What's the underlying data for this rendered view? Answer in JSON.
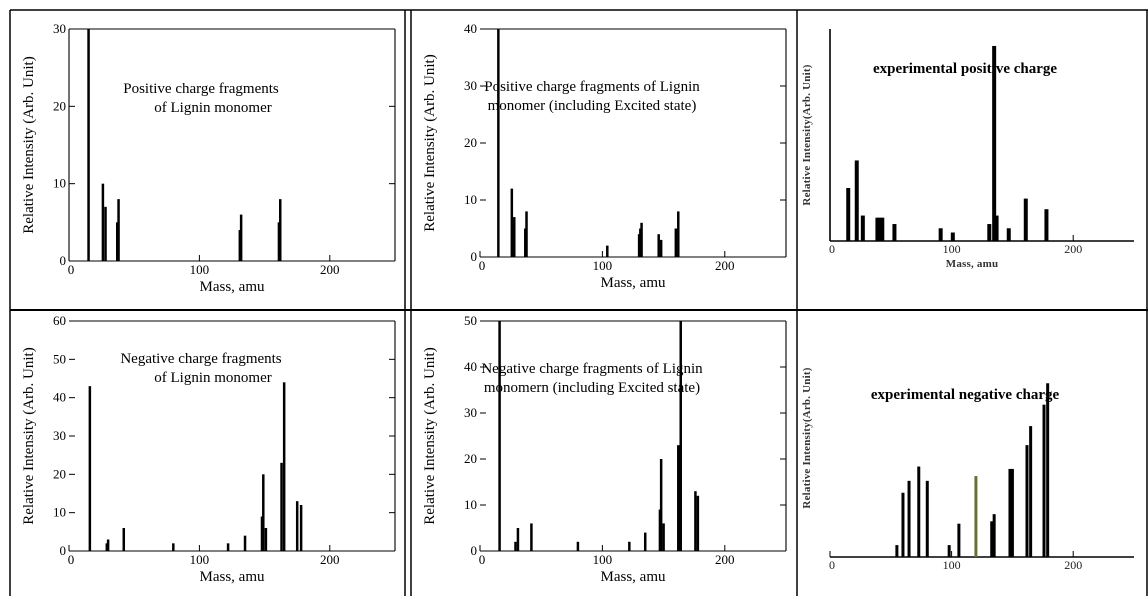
{
  "chart_data": [
    {
      "type": "bar",
      "annotation": [
        "Positive charge fragments",
        "of Lignin monomer"
      ],
      "xlabel": "Mass, amu",
      "ylabel": "Relative Intensity (Arb. Unit)",
      "xlim": [
        0,
        250
      ],
      "ylim": [
        0,
        30
      ],
      "xticks": [
        0,
        100,
        200
      ],
      "yticks": [
        0,
        10,
        20,
        30
      ],
      "x": [
        15,
        26,
        28,
        37,
        38,
        131,
        132,
        161,
        162
      ],
      "values": [
        30,
        10,
        7,
        5,
        8,
        4,
        6,
        5,
        8
      ]
    },
    {
      "type": "bar",
      "annotation": [
        "Positive charge fragments of Lignin",
        "monomer (including Excited state)"
      ],
      "xlabel": "Mass, amu",
      "ylabel": "Relative Intensity (Arb. Unit)",
      "xlim": [
        0,
        250
      ],
      "ylim": [
        0,
        40
      ],
      "xticks": [
        0,
        100,
        200
      ],
      "yticks": [
        0,
        10,
        20,
        30,
        40
      ],
      "x": [
        15,
        26,
        28,
        37,
        38,
        104,
        130,
        131,
        132,
        146,
        148,
        160,
        162
      ],
      "values": [
        40,
        12,
        7,
        5,
        8,
        2,
        4,
        5,
        6,
        4,
        3,
        5,
        8
      ]
    },
    {
      "type": "bar",
      "annotation": [
        "experimental positive charge"
      ],
      "xlabel": "Mass, amu",
      "ylabel": "Relative Intensity(Arb. Unit)",
      "xlim": [
        0,
        250
      ],
      "ylim": [
        0,
        100
      ],
      "xticks": [
        0,
        100,
        200
      ],
      "yticks": [],
      "x": [
        15,
        22,
        27,
        39,
        41,
        43,
        53,
        91,
        101,
        131,
        135,
        137,
        147,
        161,
        178
      ],
      "values": [
        25,
        38,
        12,
        11,
        11,
        11,
        8,
        6,
        4,
        8,
        92,
        12,
        6,
        20,
        15
      ]
    },
    {
      "type": "bar",
      "annotation": [
        "Negative charge fragments",
        "of Lignin monomer"
      ],
      "xlabel": "Mass, amu",
      "ylabel": "Relative Intensity (Arb. Unit)",
      "xlim": [
        0,
        250
      ],
      "ylim": [
        0,
        60
      ],
      "xticks": [
        0,
        100,
        200
      ],
      "yticks": [
        0,
        10,
        20,
        30,
        40,
        50,
        60
      ],
      "x": [
        16,
        29,
        30,
        42,
        80,
        122,
        135,
        148,
        149,
        151,
        163,
        165,
        175,
        178
      ],
      "values": [
        43,
        2,
        3,
        6,
        2,
        2,
        4,
        9,
        20,
        6,
        23,
        44,
        13,
        12
      ]
    },
    {
      "type": "bar",
      "annotation": [
        "Negative charge fragments of Lignin",
        "monomern (including Excited state)"
      ],
      "xlabel": "Mass, amu",
      "ylabel": "Relative Intensity (Arb. Unit)",
      "xlim": [
        0,
        250
      ],
      "ylim": [
        0,
        50
      ],
      "xticks": [
        0,
        100,
        200
      ],
      "yticks": [
        0,
        10,
        20,
        30,
        40,
        50
      ],
      "x": [
        16,
        29,
        31,
        42,
        80,
        122,
        135,
        147,
        148,
        150,
        162,
        164,
        176,
        178
      ],
      "values": [
        50,
        2,
        5,
        6,
        2,
        2,
        4,
        9,
        20,
        6,
        23,
        50,
        13,
        12
      ]
    },
    {
      "type": "bar",
      "annotation": [
        "experimental negative charge"
      ],
      "xlabel": "",
      "ylabel": "Relative Intensity(Arb. Unit)",
      "xlim": [
        0,
        250
      ],
      "ylim": [
        0,
        100
      ],
      "xticks": [
        0,
        100,
        200
      ],
      "yticks": [],
      "x": [
        55,
        60,
        65,
        73,
        80,
        98,
        106,
        120,
        133,
        135,
        148,
        150,
        162,
        165,
        176,
        179
      ],
      "values": [
        5,
        27,
        32,
        38,
        32,
        5,
        14,
        34,
        15,
        18,
        37,
        37,
        47,
        55,
        64,
        73
      ]
    }
  ]
}
